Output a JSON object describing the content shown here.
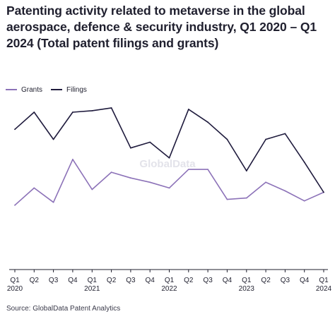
{
  "title": "Patenting activity related to metaverse in the global aerospace, defence & security industry, Q1 2020 – Q1 2024 (Total patent filings and grants)",
  "source": "Source: GlobalData Patent Analytics",
  "watermark": "GlobalData",
  "legend": [
    {
      "label": "Grants",
      "color": "#8c72b8"
    },
    {
      "label": "Filings",
      "color": "#1f1b3d"
    }
  ],
  "chart_data": {
    "type": "line",
    "title": "Patenting activity related to metaverse in the global aerospace, defence & security industry, Q1 2020 – Q1 2024 (Total patent filings and grants)",
    "x": [
      "Q1 2020",
      "Q2 2020",
      "Q3 2020",
      "Q4 2020",
      "Q1 2021",
      "Q2 2021",
      "Q3 2021",
      "Q4 2021",
      "Q1 2022",
      "Q2 2022",
      "Q3 2022",
      "Q4 2022",
      "Q1 2023",
      "Q2 2023",
      "Q3 2023",
      "Q4 2023",
      "Q1 2024"
    ],
    "tick_labels": [
      {
        "quarter": "Q1",
        "year": "2020"
      },
      {
        "quarter": "Q2",
        "year": ""
      },
      {
        "quarter": "Q3",
        "year": ""
      },
      {
        "quarter": "Q4",
        "year": ""
      },
      {
        "quarter": "Q1",
        "year": "2021"
      },
      {
        "quarter": "Q2",
        "year": ""
      },
      {
        "quarter": "Q3",
        "year": ""
      },
      {
        "quarter": "Q4",
        "year": ""
      },
      {
        "quarter": "Q1",
        "year": "2022"
      },
      {
        "quarter": "Q2",
        "year": ""
      },
      {
        "quarter": "Q3",
        "year": ""
      },
      {
        "quarter": "Q4",
        "year": ""
      },
      {
        "quarter": "Q1",
        "year": "2023"
      },
      {
        "quarter": "Q2",
        "year": ""
      },
      {
        "quarter": "Q3",
        "year": ""
      },
      {
        "quarter": "Q4",
        "year": ""
      },
      {
        "quarter": "Q1",
        "year": "2024"
      }
    ],
    "series": [
      {
        "name": "Grants",
        "color": "#8c72b8",
        "values": [
          45,
          57,
          47,
          77,
          56,
          68,
          64,
          61,
          57,
          70,
          70,
          49,
          50,
          61,
          55,
          48,
          54
        ]
      },
      {
        "name": "Filings",
        "color": "#1f1b3d",
        "values": [
          98,
          110,
          91,
          110,
          111,
          113,
          85,
          89,
          78,
          112,
          103,
          91,
          69,
          91,
          95,
          75,
          54
        ]
      }
    ],
    "ylim": [
      0,
      145
    ],
    "xlabel": "",
    "ylabel": "",
    "grid": false,
    "legend_position": "top-left"
  }
}
